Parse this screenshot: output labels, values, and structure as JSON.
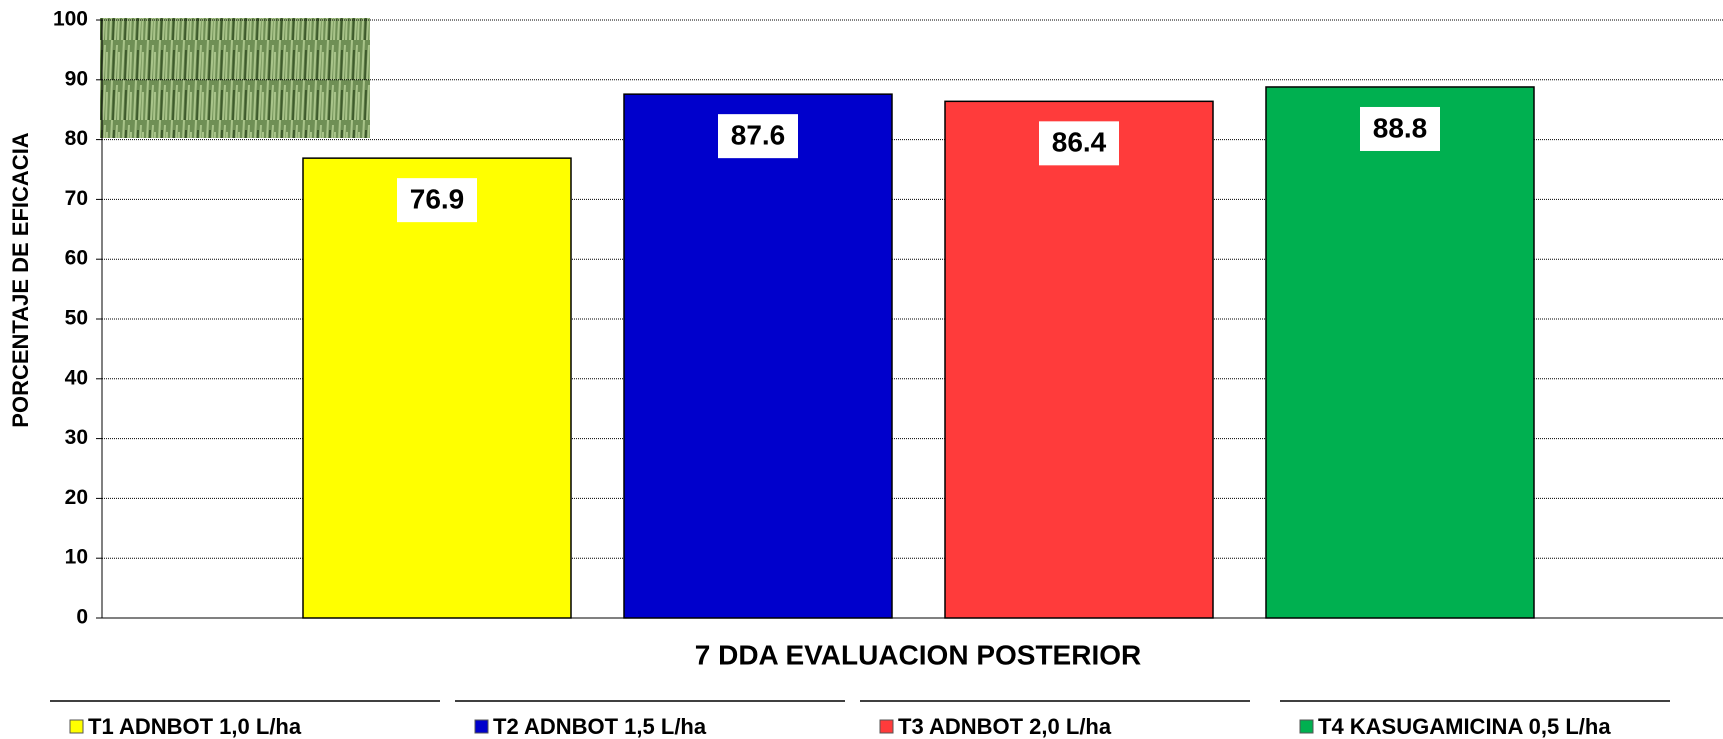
{
  "chart_data": {
    "type": "bar",
    "categories": [
      "7 DDA EVALUACION POSTERIOR"
    ],
    "y_label": "PORCENTAJE DE EFICACIA",
    "series": [
      {
        "name": "T1 ADNBOT 1,0 L/ha",
        "color": "#ffff00",
        "values": [
          76.9
        ]
      },
      {
        "name": "T2 ADNBOT 1,5 L/ha",
        "color": "#0000cc",
        "values": [
          87.6
        ]
      },
      {
        "name": "T3 ADNBOT 2,0 L/ha",
        "color": "#ff3b3b",
        "values": [
          86.4
        ]
      },
      {
        "name": "T4 KASUGAMICINA 0,5 L/ha",
        "color": "#00b050",
        "values": [
          88.8
        ]
      }
    ],
    "ylim": [
      0,
      100
    ],
    "yticks": [
      0,
      10,
      20,
      30,
      40,
      50,
      60,
      70,
      80,
      90,
      100
    ],
    "grid": true,
    "legend": "bottom"
  }
}
